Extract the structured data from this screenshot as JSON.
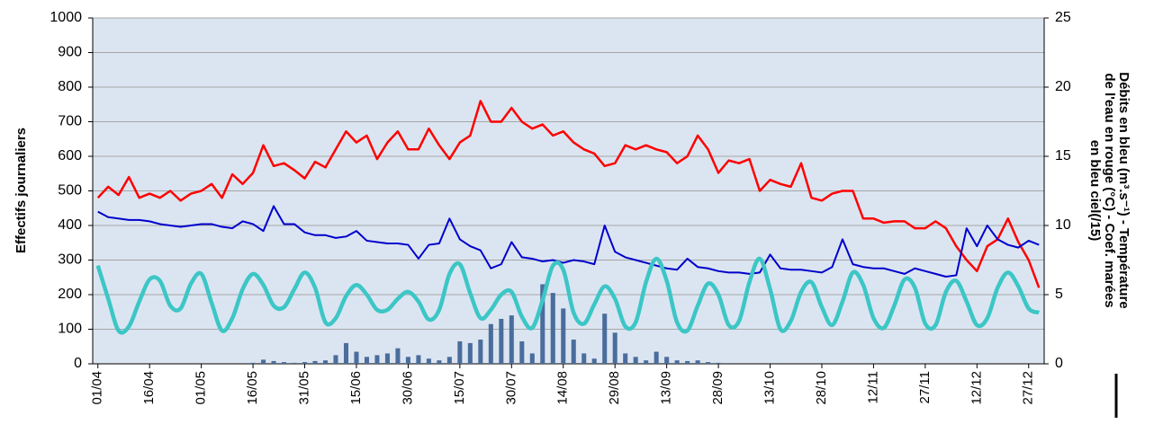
{
  "chart_data": {
    "type": "combo",
    "y_label": "Effectifs journaliers",
    "y2_label": [
      "Débits en bleu (m³.s⁻¹) - Température",
      "de l'eau en rouge (°C) - Coef. marées",
      "en bleu ciel(/15)"
    ],
    "categories": [
      "01/04",
      null,
      null,
      null,
      null,
      "16/04",
      null,
      null,
      null,
      null,
      "01/05",
      null,
      null,
      null,
      null,
      "16/05",
      null,
      null,
      null,
      null,
      "31/05",
      null,
      null,
      null,
      null,
      "15/06",
      null,
      null,
      null,
      null,
      "30/06",
      null,
      null,
      null,
      null,
      "15/07",
      null,
      null,
      null,
      null,
      "30/07",
      null,
      null,
      null,
      null,
      "14/08",
      null,
      null,
      null,
      null,
      "29/08",
      null,
      null,
      null,
      null,
      "13/09",
      null,
      null,
      null,
      null,
      "28/09",
      null,
      null,
      null,
      null,
      "13/10",
      null,
      null,
      null,
      null,
      "28/10",
      null,
      null,
      null,
      null,
      "12/11",
      null,
      null,
      null,
      null,
      "27/11",
      null,
      null,
      null,
      null,
      "12/12",
      null,
      null,
      null,
      null,
      "27/12",
      null
    ],
    "ylim": [
      0,
      1000
    ],
    "yticks": [
      0,
      100,
      200,
      300,
      400,
      500,
      600,
      700,
      800,
      900,
      1000
    ],
    "y2lim": [
      0,
      25
    ],
    "y2ticks": [
      0,
      5,
      10,
      15,
      20,
      25
    ],
    "grid": true,
    "plot_background": "#dbe5f1",
    "series": [
      {
        "name": "Effectifs",
        "type": "bar",
        "axis": "y",
        "color": "#4a6d9c",
        "values": [
          0,
          0,
          0,
          0,
          0,
          0,
          0,
          0,
          0,
          0,
          0,
          0,
          0,
          0,
          0,
          3,
          12,
          8,
          5,
          3,
          5,
          8,
          10,
          25,
          60,
          35,
          20,
          25,
          30,
          45,
          20,
          25,
          15,
          10,
          20,
          65,
          60,
          70,
          115,
          130,
          140,
          65,
          30,
          230,
          205,
          160,
          70,
          30,
          15,
          145,
          90,
          30,
          20,
          10,
          35,
          20,
          10,
          8,
          10,
          5,
          3,
          0,
          0,
          0,
          0,
          0,
          0,
          0,
          0,
          0,
          0,
          0,
          0,
          0,
          0,
          0,
          0,
          0,
          0,
          0,
          0,
          0,
          0,
          0,
          0,
          0,
          0,
          0,
          0,
          0,
          0,
          0
        ]
      },
      {
        "name": "Température",
        "type": "line",
        "axis": "y2",
        "color": "#ff0000",
        "width": 2.5,
        "values": [
          12.0,
          12.8,
          12.2,
          13.5,
          12.0,
          12.3,
          12.0,
          12.5,
          11.8,
          12.3,
          12.5,
          13.0,
          12.0,
          13.7,
          13.0,
          13.8,
          15.8,
          14.3,
          14.5,
          14.0,
          13.4,
          14.6,
          14.2,
          15.5,
          16.8,
          16.0,
          16.5,
          14.8,
          16.0,
          16.8,
          15.5,
          15.5,
          17.0,
          15.8,
          14.8,
          16.0,
          16.5,
          19.0,
          17.5,
          17.5,
          18.5,
          17.5,
          17.0,
          17.3,
          16.5,
          16.8,
          16.0,
          15.5,
          15.2,
          14.3,
          14.5,
          15.8,
          15.5,
          15.8,
          15.5,
          15.3,
          14.5,
          15.0,
          16.5,
          15.5,
          13.8,
          14.7,
          14.5,
          14.8,
          12.5,
          13.3,
          13.0,
          12.8,
          14.5,
          12.0,
          11.8,
          12.3,
          12.5,
          12.5,
          10.5,
          10.5,
          10.2,
          10.3,
          10.3,
          9.8,
          9.8,
          10.3,
          9.8,
          8.5,
          7.5,
          6.7,
          8.5,
          9.0,
          10.5,
          8.8,
          7.5,
          5.5
        ]
      },
      {
        "name": "Débits",
        "type": "line",
        "axis": "y2",
        "color": "#0000cc",
        "width": 2,
        "values": [
          11.0,
          10.6,
          10.5,
          10.4,
          10.4,
          10.3,
          10.1,
          10.0,
          9.9,
          10.0,
          10.1,
          10.1,
          9.9,
          9.8,
          10.3,
          10.1,
          9.6,
          11.4,
          10.1,
          10.1,
          9.5,
          9.3,
          9.3,
          9.1,
          9.2,
          9.6,
          8.9,
          8.8,
          8.7,
          8.7,
          8.6,
          7.6,
          8.6,
          8.7,
          10.5,
          9.0,
          8.5,
          8.2,
          6.9,
          7.2,
          8.8,
          7.7,
          7.6,
          7.4,
          7.5,
          7.3,
          7.5,
          7.4,
          7.2,
          10.0,
          8.1,
          7.7,
          7.5,
          7.3,
          7.1,
          6.9,
          6.8,
          7.6,
          7.0,
          6.9,
          6.7,
          6.6,
          6.6,
          6.5,
          6.6,
          7.9,
          6.9,
          6.8,
          6.8,
          6.7,
          6.6,
          7.0,
          9.0,
          7.2,
          7.0,
          6.9,
          6.9,
          6.7,
          6.5,
          6.9,
          6.7,
          6.5,
          6.3,
          6.4,
          9.8,
          8.5,
          10.0,
          9.0,
          8.6,
          8.4,
          8.9,
          8.6
        ]
      },
      {
        "name": "Coef. marées",
        "type": "line",
        "axis": "y2",
        "color": "#3cc6c6",
        "width": 4.5,
        "smooth": true,
        "values": [
          7.1,
          4.7,
          2.4,
          2.7,
          4.5,
          6.1,
          6.0,
          4.2,
          4.0,
          5.8,
          6.5,
          4.4,
          2.4,
          3.3,
          5.4,
          6.5,
          5.7,
          4.2,
          4.1,
          5.4,
          6.6,
          5.5,
          3.0,
          3.3,
          4.9,
          5.7,
          5.0,
          3.9,
          3.9,
          4.7,
          5.2,
          4.5,
          3.2,
          3.9,
          6.5,
          7.2,
          5.1,
          3.3,
          3.9,
          5.0,
          5.2,
          3.4,
          2.6,
          4.6,
          7.1,
          6.8,
          3.7,
          2.9,
          4.3,
          5.6,
          4.7,
          2.7,
          3.0,
          5.9,
          7.6,
          6.0,
          3.0,
          2.4,
          4.2,
          5.8,
          5.0,
          2.8,
          3.1,
          5.9,
          7.6,
          5.4,
          2.5,
          3.1,
          5.2,
          5.9,
          4.1,
          2.8,
          4.5,
          6.6,
          5.7,
          3.3,
          2.6,
          4.2,
          6.1,
          5.5,
          2.9,
          2.8,
          5.2,
          6.0,
          4.5,
          2.8,
          3.3,
          5.5,
          6.6,
          5.6,
          4.0,
          3.7
        ]
      }
    ]
  }
}
